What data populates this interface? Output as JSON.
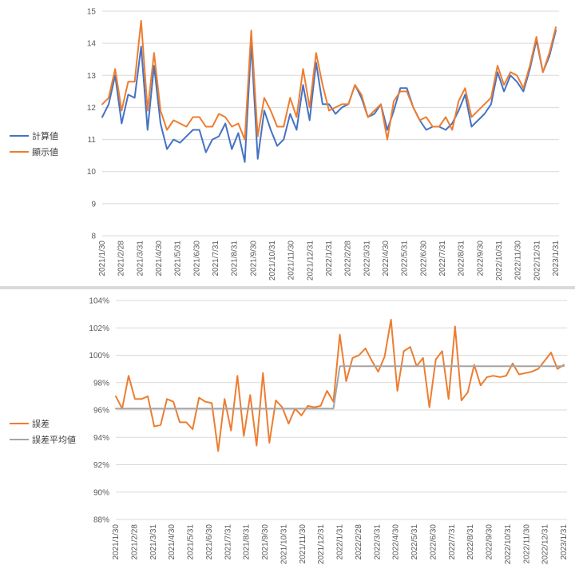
{
  "chart_data": [
    {
      "type": "line",
      "x_label_ticks": [
        "2021/1/30",
        "2021/2/28",
        "2021/3/31",
        "2021/4/30",
        "2021/5/31",
        "2021/6/30",
        "2021/7/31",
        "2021/8/31",
        "2021/9/30",
        "2021/10/31",
        "2021/11/30",
        "2021/12/31",
        "2022/1/31",
        "2022/2/28",
        "2022/3/31",
        "2022/4/30",
        "2022/5/31",
        "2022/6/30",
        "2022/7/31",
        "2022/8/31",
        "2022/9/30",
        "2022/10/31",
        "2022/11/30",
        "2022/12/31",
        "2023/1/31"
      ],
      "ylim": [
        8,
        15
      ],
      "yticks": [
        "8",
        "9",
        "10",
        "11",
        "12",
        "13",
        "14",
        "15"
      ],
      "legend_position": "left",
      "series": [
        {
          "name": "計算値",
          "color": "#4472c4",
          "values": [
            11.7,
            12.1,
            13.0,
            11.5,
            12.4,
            12.3,
            13.9,
            11.3,
            13.3,
            11.5,
            10.7,
            11.0,
            10.9,
            11.1,
            11.3,
            11.3,
            10.6,
            11.0,
            11.1,
            11.5,
            10.7,
            11.2,
            10.3,
            14.0,
            10.4,
            11.9,
            11.3,
            10.8,
            11.0,
            11.8,
            11.3,
            12.7,
            11.6,
            13.4,
            12.1,
            12.1,
            11.8,
            12.0,
            12.1,
            12.7,
            12.3,
            11.7,
            11.8,
            12.1,
            11.3,
            11.9,
            12.6,
            12.6,
            12.0,
            11.6,
            11.3,
            11.4,
            11.4,
            11.3,
            11.5,
            11.9,
            12.4,
            11.4,
            11.6,
            11.8,
            12.1,
            13.1,
            12.5,
            13.0,
            12.8,
            12.5,
            13.2,
            14.1,
            13.1,
            13.6,
            14.4
          ]
        },
        {
          "name": "顯示値",
          "color": "#ed7d31",
          "values": [
            12.1,
            12.3,
            13.2,
            11.9,
            12.8,
            12.8,
            14.7,
            11.9,
            13.7,
            11.9,
            11.3,
            11.6,
            11.5,
            11.4,
            11.7,
            11.7,
            11.4,
            11.4,
            11.8,
            11.7,
            11.4,
            11.5,
            11.0,
            14.4,
            11.1,
            12.3,
            11.9,
            11.4,
            11.4,
            12.3,
            11.7,
            13.2,
            12.0,
            13.7,
            12.7,
            11.9,
            12.0,
            12.1,
            12.1,
            12.7,
            12.4,
            11.7,
            11.9,
            12.1,
            11.0,
            12.2,
            12.5,
            12.5,
            12.0,
            11.6,
            11.7,
            11.4,
            11.4,
            11.7,
            11.3,
            12.2,
            12.6,
            11.7,
            11.9,
            12.1,
            12.3,
            13.3,
            12.7,
            13.1,
            13.0,
            12.6,
            13.3,
            14.2,
            13.1,
            13.7,
            14.5
          ]
        }
      ]
    },
    {
      "type": "line",
      "x_label_ticks": [
        "2021/1/30",
        "2021/2/28",
        "2021/3/31",
        "2021/4/30",
        "2021/5/31",
        "2021/6/30",
        "2021/7/31",
        "2021/8/31",
        "2021/9/30",
        "2021/10/31",
        "2021/11/30",
        "2021/12/31",
        "2022/1/31",
        "2022/2/28",
        "2022/3/31",
        "2022/4/30",
        "2022/5/31",
        "2022/6/30",
        "2022/7/31",
        "2022/8/31",
        "2022/9/30",
        "2022/10/31",
        "2022/11/30",
        "2022/12/31",
        "2023/1/31"
      ],
      "ylim": [
        0.88,
        1.04
      ],
      "yticks": [
        "88%",
        "90%",
        "92%",
        "94%",
        "96%",
        "98%",
        "100%",
        "102%",
        "104%"
      ],
      "legend_position": "left",
      "series": [
        {
          "name": "誤差",
          "color": "#ed7d31",
          "values": [
            0.97,
            0.961,
            0.985,
            0.968,
            0.968,
            0.97,
            0.948,
            0.949,
            0.968,
            0.966,
            0.951,
            0.951,
            0.946,
            0.969,
            0.966,
            0.965,
            0.93,
            0.968,
            0.945,
            0.985,
            0.941,
            0.971,
            0.934,
            0.987,
            0.936,
            0.967,
            0.962,
            0.95,
            0.961,
            0.956,
            0.963,
            0.962,
            0.963,
            0.974,
            0.966,
            1.015,
            0.981,
            0.998,
            1.0,
            1.005,
            0.996,
            0.988,
            0.999,
            1.026,
            0.974,
            1.003,
            1.006,
            0.992,
            0.998,
            0.962,
            0.997,
            1.003,
            0.968,
            1.021,
            0.967,
            0.973,
            0.993,
            0.978,
            0.984,
            0.985,
            0.984,
            0.985,
            0.994,
            0.986,
            0.987,
            0.988,
            0.99,
            0.996,
            1.002,
            0.99,
            0.993
          ]
        },
        {
          "name": "誤差平均値",
          "color": "#a5a5a5",
          "values": [
            0.961,
            0.961,
            0.961,
            0.961,
            0.961,
            0.961,
            0.961,
            0.961,
            0.961,
            0.961,
            0.961,
            0.961,
            0.961,
            0.961,
            0.961,
            0.961,
            0.961,
            0.961,
            0.961,
            0.961,
            0.961,
            0.961,
            0.961,
            0.961,
            0.961,
            0.961,
            0.961,
            0.961,
            0.961,
            0.961,
            0.961,
            0.961,
            0.961,
            0.961,
            0.961,
            0.992,
            0.992,
            0.992,
            0.992,
            0.992,
            0.992,
            0.992,
            0.992,
            0.992,
            0.992,
            0.992,
            0.992,
            0.992,
            0.992,
            0.992,
            0.992,
            0.992,
            0.992,
            0.992,
            0.992,
            0.992,
            0.992,
            0.992,
            0.992,
            0.992,
            0.992,
            0.992,
            0.992,
            0.992,
            0.992,
            0.992,
            0.992,
            0.992,
            0.992,
            0.992,
            0.992
          ]
        }
      ]
    }
  ]
}
